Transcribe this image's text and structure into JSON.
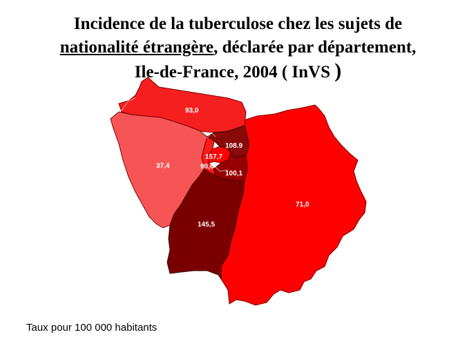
{
  "title": {
    "line1": "Incidence de la tuberculose chez les sujets de",
    "line2_underlined": "nationalité étrangère",
    "line2_rest": ", déclarée par département,",
    "line3": "Ile-de-France, 2004 ( InVS ",
    "line3_paren": ")"
  },
  "map": {
    "departments": [
      {
        "value": "93,0",
        "color": "#f51f1f"
      },
      {
        "value": "37,4",
        "color": "#f75555"
      },
      {
        "value": "71,0",
        "color": "#ff0000"
      },
      {
        "value": "145,5",
        "color": "#7a0000"
      },
      {
        "value": "108.9",
        "color": "#8a0a0a"
      },
      {
        "value": "100,1",
        "color": "#960000"
      },
      {
        "value": "157,7",
        "color": "#ff0000"
      },
      {
        "value": "90,6",
        "color": "#ff1a1a"
      }
    ]
  },
  "footnote": "Taux pour 100 000 habitants"
}
